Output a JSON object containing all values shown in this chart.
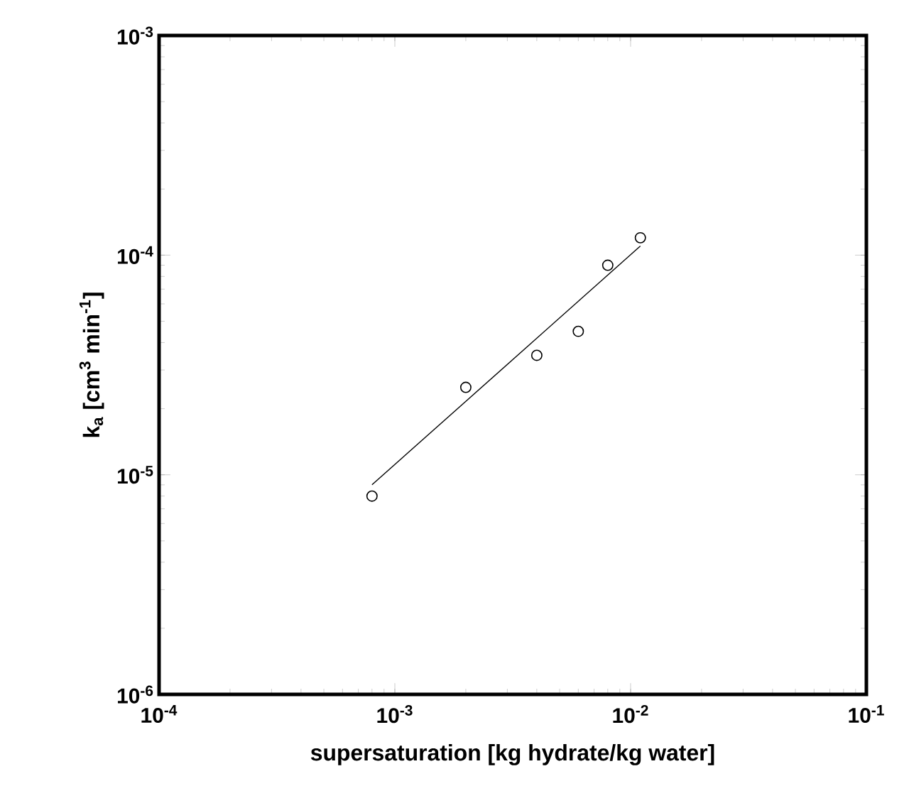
{
  "chart_data": {
    "type": "scatter",
    "xlabel": "supersaturation [kg hydrate/kg water]",
    "ylabel": "k$_{a}$ [cm$^{3}$ min$^{-1}$]",
    "log": "xy",
    "xlim": [
      0.0001,
      0.1
    ],
    "ylim": [
      1e-06,
      0.001
    ],
    "xticks": [
      {
        "value": 0.0001,
        "label": "10$^{-4}$"
      },
      {
        "value": 0.001,
        "label": "10$^{-3}$"
      },
      {
        "value": 0.01,
        "label": "10$^{-2}$"
      },
      {
        "value": 0.1,
        "label": "10$^{-1}$"
      }
    ],
    "yticks": [
      {
        "value": 1e-06,
        "label": "10$^{-6}$"
      },
      {
        "value": 1e-05,
        "label": "10$^{-5}$"
      },
      {
        "value": 0.0001,
        "label": "10$^{-4}$"
      },
      {
        "value": 0.001,
        "label": "10$^{-3}$"
      }
    ],
    "series": [
      {
        "color": "#000000",
        "marker": "circle",
        "x": [
          0.0008,
          0.002,
          0.004,
          0.006,
          0.008,
          0.011
        ],
        "values": [
          8e-06,
          2.5e-05,
          3.5e-05,
          4.5e-05,
          9e-05,
          0.00012
        ]
      },
      {
        "type": "line",
        "color": "#000000",
        "marker": "none",
        "x": [
          0.0008,
          0.011
        ],
        "values": [
          9e-06,
          0.00011
        ]
      }
    ]
  }
}
